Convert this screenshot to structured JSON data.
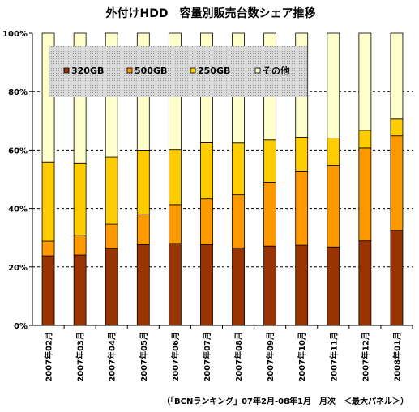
{
  "colors": {
    "320GB": "#993300",
    "500GB": "#ff9900",
    "250GB": "#ffcc00",
    "その他": "#ffffcc",
    "grid": "#000000",
    "legend_bg": "#c0c0c0"
  },
  "chart_data": {
    "type": "bar",
    "stacked": true,
    "title": "外付けHDD　容量別販売台数シェア推移",
    "source": "（「BCNランキング」07年2月-08年1月　月次　＜最大パネル＞）",
    "categories": [
      "2007年02月",
      "2007年03月",
      "2007年04月",
      "2007年05月",
      "2007年06月",
      "2007年07月",
      "2007年08月",
      "2007年09月",
      "2007年10月",
      "2007年11月",
      "2007年12月",
      "2008年01月"
    ],
    "y_ticks": [
      "0%",
      "20%",
      "40%",
      "60%",
      "80%",
      "100%"
    ],
    "ylim": [
      0,
      100
    ],
    "grid": true,
    "legend_position": "top",
    "series": [
      {
        "name": "320GB",
        "values": [
          23.8,
          24.1,
          26.3,
          27.6,
          28.0,
          27.6,
          26.5,
          27.1,
          27.4,
          26.8,
          28.9,
          32.5
        ]
      },
      {
        "name": "500GB",
        "values": [
          5.0,
          6.6,
          8.3,
          10.5,
          13.3,
          15.7,
          18.2,
          21.8,
          25.4,
          27.9,
          31.8,
          32.4
        ]
      },
      {
        "name": "250GB",
        "values": [
          27.1,
          24.9,
          23.0,
          21.9,
          18.9,
          19.2,
          17.7,
          14.6,
          11.6,
          9.4,
          6.1,
          5.8
        ]
      },
      {
        "name": "その他",
        "values": [
          44.1,
          44.4,
          42.4,
          40.0,
          39.8,
          37.5,
          37.6,
          36.5,
          35.6,
          35.9,
          33.2,
          29.3
        ]
      }
    ]
  }
}
